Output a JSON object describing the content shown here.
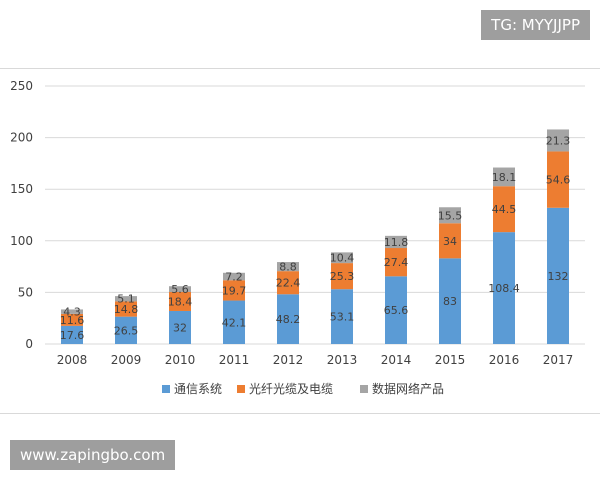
{
  "watermarks": {
    "top": "TG: MYYJJPP",
    "bottom": "www.zapingbo.com"
  },
  "colors": {
    "series1": "#5b9bd5",
    "series2": "#ed7d31",
    "series3": "#a5a5a5",
    "grid": "#d9d9d9",
    "text": "#404040"
  },
  "chart_data": {
    "type": "bar",
    "stacked": true,
    "title": "",
    "xlabel": "",
    "ylabel": "",
    "ylim": [
      0,
      250
    ],
    "yticks": [
      0,
      50,
      100,
      150,
      200,
      250
    ],
    "grid": true,
    "legend_position": "bottom",
    "categories": [
      "2008",
      "2009",
      "2010",
      "2011",
      "2012",
      "2013",
      "2014",
      "2015",
      "2016",
      "2017"
    ],
    "series": [
      {
        "name": "通信系统",
        "color": "#5b9bd5",
        "values": [
          17.6,
          26.5,
          32,
          42.1,
          48.2,
          53.1,
          65.6,
          83,
          108.4,
          132
        ]
      },
      {
        "name": "光纤光缆及电缆",
        "color": "#ed7d31",
        "values": [
          11.6,
          14.8,
          18.4,
          19.7,
          22.4,
          25.3,
          27.4,
          34,
          44.5,
          54.6
        ]
      },
      {
        "name": "数据网络产品",
        "color": "#a5a5a5",
        "values": [
          4.3,
          5.1,
          5.6,
          7.2,
          8.8,
          10.4,
          11.8,
          15.5,
          18.1,
          21.3
        ]
      }
    ]
  }
}
